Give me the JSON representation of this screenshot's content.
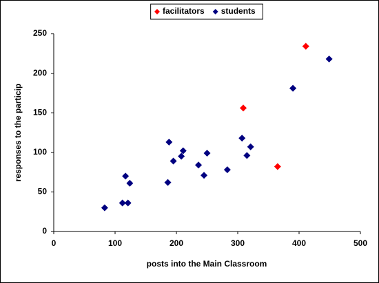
{
  "chart_data": {
    "type": "scatter",
    "xlabel": "posts into the Main Classroom",
    "ylabel": "responses to the particip",
    "xlim": [
      0,
      500
    ],
    "xticks": [
      0,
      100,
      200,
      300,
      400,
      500
    ],
    "ylim": [
      0,
      250
    ],
    "yticks": [
      0,
      50,
      100,
      150,
      200,
      250
    ],
    "legend": "top",
    "series": [
      {
        "name": "facilitators",
        "color": "#ff0000",
        "x": [
          309,
          411,
          365
        ],
        "values": [
          156,
          234,
          82
        ]
      },
      {
        "name": "students",
        "color": "#000080",
        "x": [
          83,
          112,
          121,
          117,
          124,
          186,
          188,
          195,
          208,
          211,
          236,
          245,
          250,
          283,
          307,
          315,
          321,
          390,
          449
        ],
        "values": [
          30,
          36,
          36,
          70,
          61,
          62,
          113,
          89,
          95,
          102,
          84,
          71,
          99,
          78,
          118,
          96,
          107,
          181,
          218
        ]
      }
    ]
  }
}
